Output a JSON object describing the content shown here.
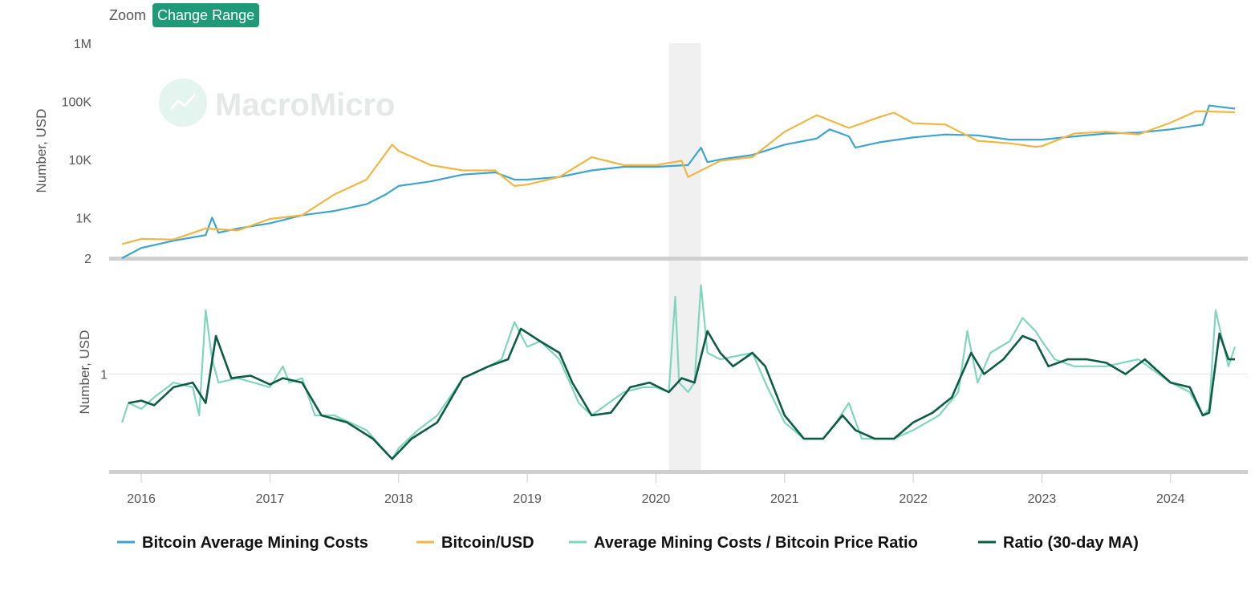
{
  "toolbar": {
    "zoom_label": "Zoom",
    "range_button": "Change Range"
  },
  "watermark": {
    "text": "MacroMicro"
  },
  "colors": {
    "mining_cost": "#3ea3d0",
    "btc_usd": "#f0b643",
    "ratio": "#7fd6bd",
    "ratio_ma": "#0d5c45",
    "range_button": "#1f9a78",
    "shade": "#ececec"
  },
  "chart_data": [
    {
      "type": "line",
      "scale": "log",
      "ylabel": "Number, USD",
      "ylim": [
        200,
        1000000
      ],
      "yticks": [
        "1M",
        "100K",
        "10K",
        "1K",
        "2"
      ],
      "series": [
        {
          "name": "Bitcoin Average Mining Costs",
          "x": [
            2015.85,
            2016.0,
            2016.25,
            2016.5,
            2016.55,
            2016.6,
            2016.75,
            2017.0,
            2017.25,
            2017.5,
            2017.75,
            2017.9,
            2018.0,
            2018.25,
            2018.5,
            2018.75,
            2018.9,
            2019.0,
            2019.25,
            2019.5,
            2019.75,
            2020.0,
            2020.25,
            2020.35,
            2020.4,
            2020.5,
            2020.75,
            2021.0,
            2021.25,
            2021.35,
            2021.5,
            2021.55,
            2021.75,
            2022.0,
            2022.25,
            2022.5,
            2022.75,
            2023.0,
            2023.25,
            2023.5,
            2023.75,
            2024.0,
            2024.25,
            2024.3,
            2024.5
          ],
          "values": [
            200,
            300,
            400,
            500,
            1000,
            550,
            650,
            800,
            1100,
            1300,
            1700,
            2500,
            3500,
            4200,
            5500,
            6000,
            4500,
            4500,
            5000,
            6500,
            7500,
            7500,
            8000,
            16000,
            9000,
            10000,
            12000,
            18000,
            23000,
            33000,
            25000,
            16000,
            20000,
            24000,
            27000,
            26000,
            22000,
            22000,
            25000,
            28000,
            29000,
            33000,
            40000,
            85000,
            75000
          ]
        },
        {
          "name": "Bitcoin/USD",
          "x": [
            2015.85,
            2016.0,
            2016.25,
            2016.5,
            2016.75,
            2017.0,
            2017.25,
            2017.5,
            2017.75,
            2017.95,
            2018.0,
            2018.25,
            2018.5,
            2018.75,
            2018.9,
            2019.0,
            2019.25,
            2019.5,
            2019.75,
            2020.0,
            2020.2,
            2020.25,
            2020.5,
            2020.75,
            2021.0,
            2021.25,
            2021.5,
            2021.75,
            2021.85,
            2022.0,
            2022.25,
            2022.5,
            2022.75,
            2022.95,
            2023.0,
            2023.25,
            2023.5,
            2023.75,
            2024.0,
            2024.2,
            2024.5
          ],
          "values": [
            350,
            430,
            420,
            650,
            600,
            950,
            1100,
            2500,
            4500,
            18000,
            14000,
            8000,
            6500,
            6500,
            3500,
            3700,
            5000,
            11000,
            8000,
            8000,
            9500,
            5000,
            9500,
            11000,
            30000,
            58000,
            35000,
            55000,
            64000,
            42000,
            40000,
            21000,
            19000,
            16500,
            17000,
            28000,
            30000,
            27000,
            43000,
            68000,
            65000
          ]
        }
      ]
    },
    {
      "type": "line",
      "scale": "log",
      "ylabel": "Number, USD",
      "ylim": [
        0.3,
        3.5
      ],
      "yticks": [
        "1"
      ],
      "shaded_region": [
        2020.1,
        2020.35
      ],
      "x_ticks": [
        "2016",
        "2017",
        "2018",
        "2019",
        "2020",
        "2021",
        "2022",
        "2023",
        "2024"
      ],
      "series": [
        {
          "name": "Average Mining Costs / Bitcoin Price Ratio",
          "x": [
            2015.85,
            2015.9,
            2016.0,
            2016.1,
            2016.25,
            2016.4,
            2016.45,
            2016.5,
            2016.55,
            2016.6,
            2016.75,
            2017.0,
            2017.1,
            2017.15,
            2017.25,
            2017.35,
            2017.5,
            2017.75,
            2017.95,
            2018.0,
            2018.15,
            2018.3,
            2018.5,
            2018.7,
            2018.8,
            2018.9,
            2019.0,
            2019.1,
            2019.25,
            2019.4,
            2019.5,
            2019.75,
            2019.9,
            2020.0,
            2020.1,
            2020.15,
            2020.18,
            2020.25,
            2020.3,
            2020.35,
            2020.4,
            2020.5,
            2020.75,
            2020.85,
            2021.0,
            2021.15,
            2021.3,
            2021.4,
            2021.5,
            2021.6,
            2021.7,
            2021.85,
            2022.0,
            2022.2,
            2022.35,
            2022.42,
            2022.5,
            2022.6,
            2022.75,
            2022.85,
            2022.95,
            2023.0,
            2023.1,
            2023.25,
            2023.5,
            2023.75,
            2024.0,
            2024.15,
            2024.25,
            2024.3,
            2024.35,
            2024.45,
            2024.5
          ],
          "values": [
            0.55,
            0.7,
            0.65,
            0.75,
            0.9,
            0.85,
            0.6,
            2.2,
            1.2,
            0.9,
            0.95,
            0.85,
            1.1,
            0.9,
            0.95,
            0.6,
            0.6,
            0.5,
            0.35,
            0.4,
            0.5,
            0.6,
            0.95,
            1.1,
            1.2,
            1.9,
            1.4,
            1.5,
            1.2,
            0.7,
            0.6,
            0.8,
            0.85,
            0.85,
            0.8,
            2.6,
            0.9,
            0.8,
            0.9,
            3.0,
            1.3,
            1.2,
            1.3,
            0.9,
            0.55,
            0.45,
            0.45,
            0.55,
            0.7,
            0.45,
            0.45,
            0.45,
            0.5,
            0.6,
            0.8,
            1.7,
            0.9,
            1.3,
            1.5,
            2.0,
            1.7,
            1.5,
            1.2,
            1.1,
            1.1,
            1.2,
            0.9,
            0.8,
            0.6,
            0.65,
            2.2,
            1.1,
            1.4
          ]
        },
        {
          "name": "Ratio (30-day MA)",
          "x": [
            2015.9,
            2016.0,
            2016.1,
            2016.25,
            2016.4,
            2016.5,
            2016.58,
            2016.7,
            2016.85,
            2017.0,
            2017.1,
            2017.25,
            2017.4,
            2017.6,
            2017.8,
            2017.95,
            2018.1,
            2018.3,
            2018.5,
            2018.7,
            2018.85,
            2018.95,
            2019.1,
            2019.25,
            2019.35,
            2019.5,
            2019.65,
            2019.8,
            2019.95,
            2020.1,
            2020.2,
            2020.3,
            2020.4,
            2020.5,
            2020.6,
            2020.75,
            2020.85,
            2021.0,
            2021.15,
            2021.3,
            2021.45,
            2021.55,
            2021.7,
            2021.85,
            2022.0,
            2022.15,
            2022.3,
            2022.45,
            2022.55,
            2022.7,
            2022.85,
            2022.95,
            2023.05,
            2023.2,
            2023.35,
            2023.5,
            2023.65,
            2023.8,
            2024.0,
            2024.15,
            2024.25,
            2024.3,
            2024.38,
            2024.45,
            2024.5
          ],
          "values": [
            0.7,
            0.72,
            0.68,
            0.85,
            0.9,
            0.7,
            1.6,
            0.95,
            0.98,
            0.88,
            0.95,
            0.9,
            0.6,
            0.55,
            0.45,
            0.35,
            0.45,
            0.55,
            0.95,
            1.1,
            1.2,
            1.75,
            1.5,
            1.3,
            0.9,
            0.6,
            0.62,
            0.85,
            0.9,
            0.8,
            0.95,
            0.9,
            1.7,
            1.3,
            1.1,
            1.3,
            1.1,
            0.6,
            0.45,
            0.45,
            0.6,
            0.5,
            0.45,
            0.45,
            0.55,
            0.62,
            0.75,
            1.3,
            1.0,
            1.2,
            1.6,
            1.5,
            1.1,
            1.2,
            1.2,
            1.15,
            1.0,
            1.2,
            0.9,
            0.85,
            0.6,
            0.62,
            1.65,
            1.2,
            1.2
          ]
        }
      ]
    }
  ]
}
